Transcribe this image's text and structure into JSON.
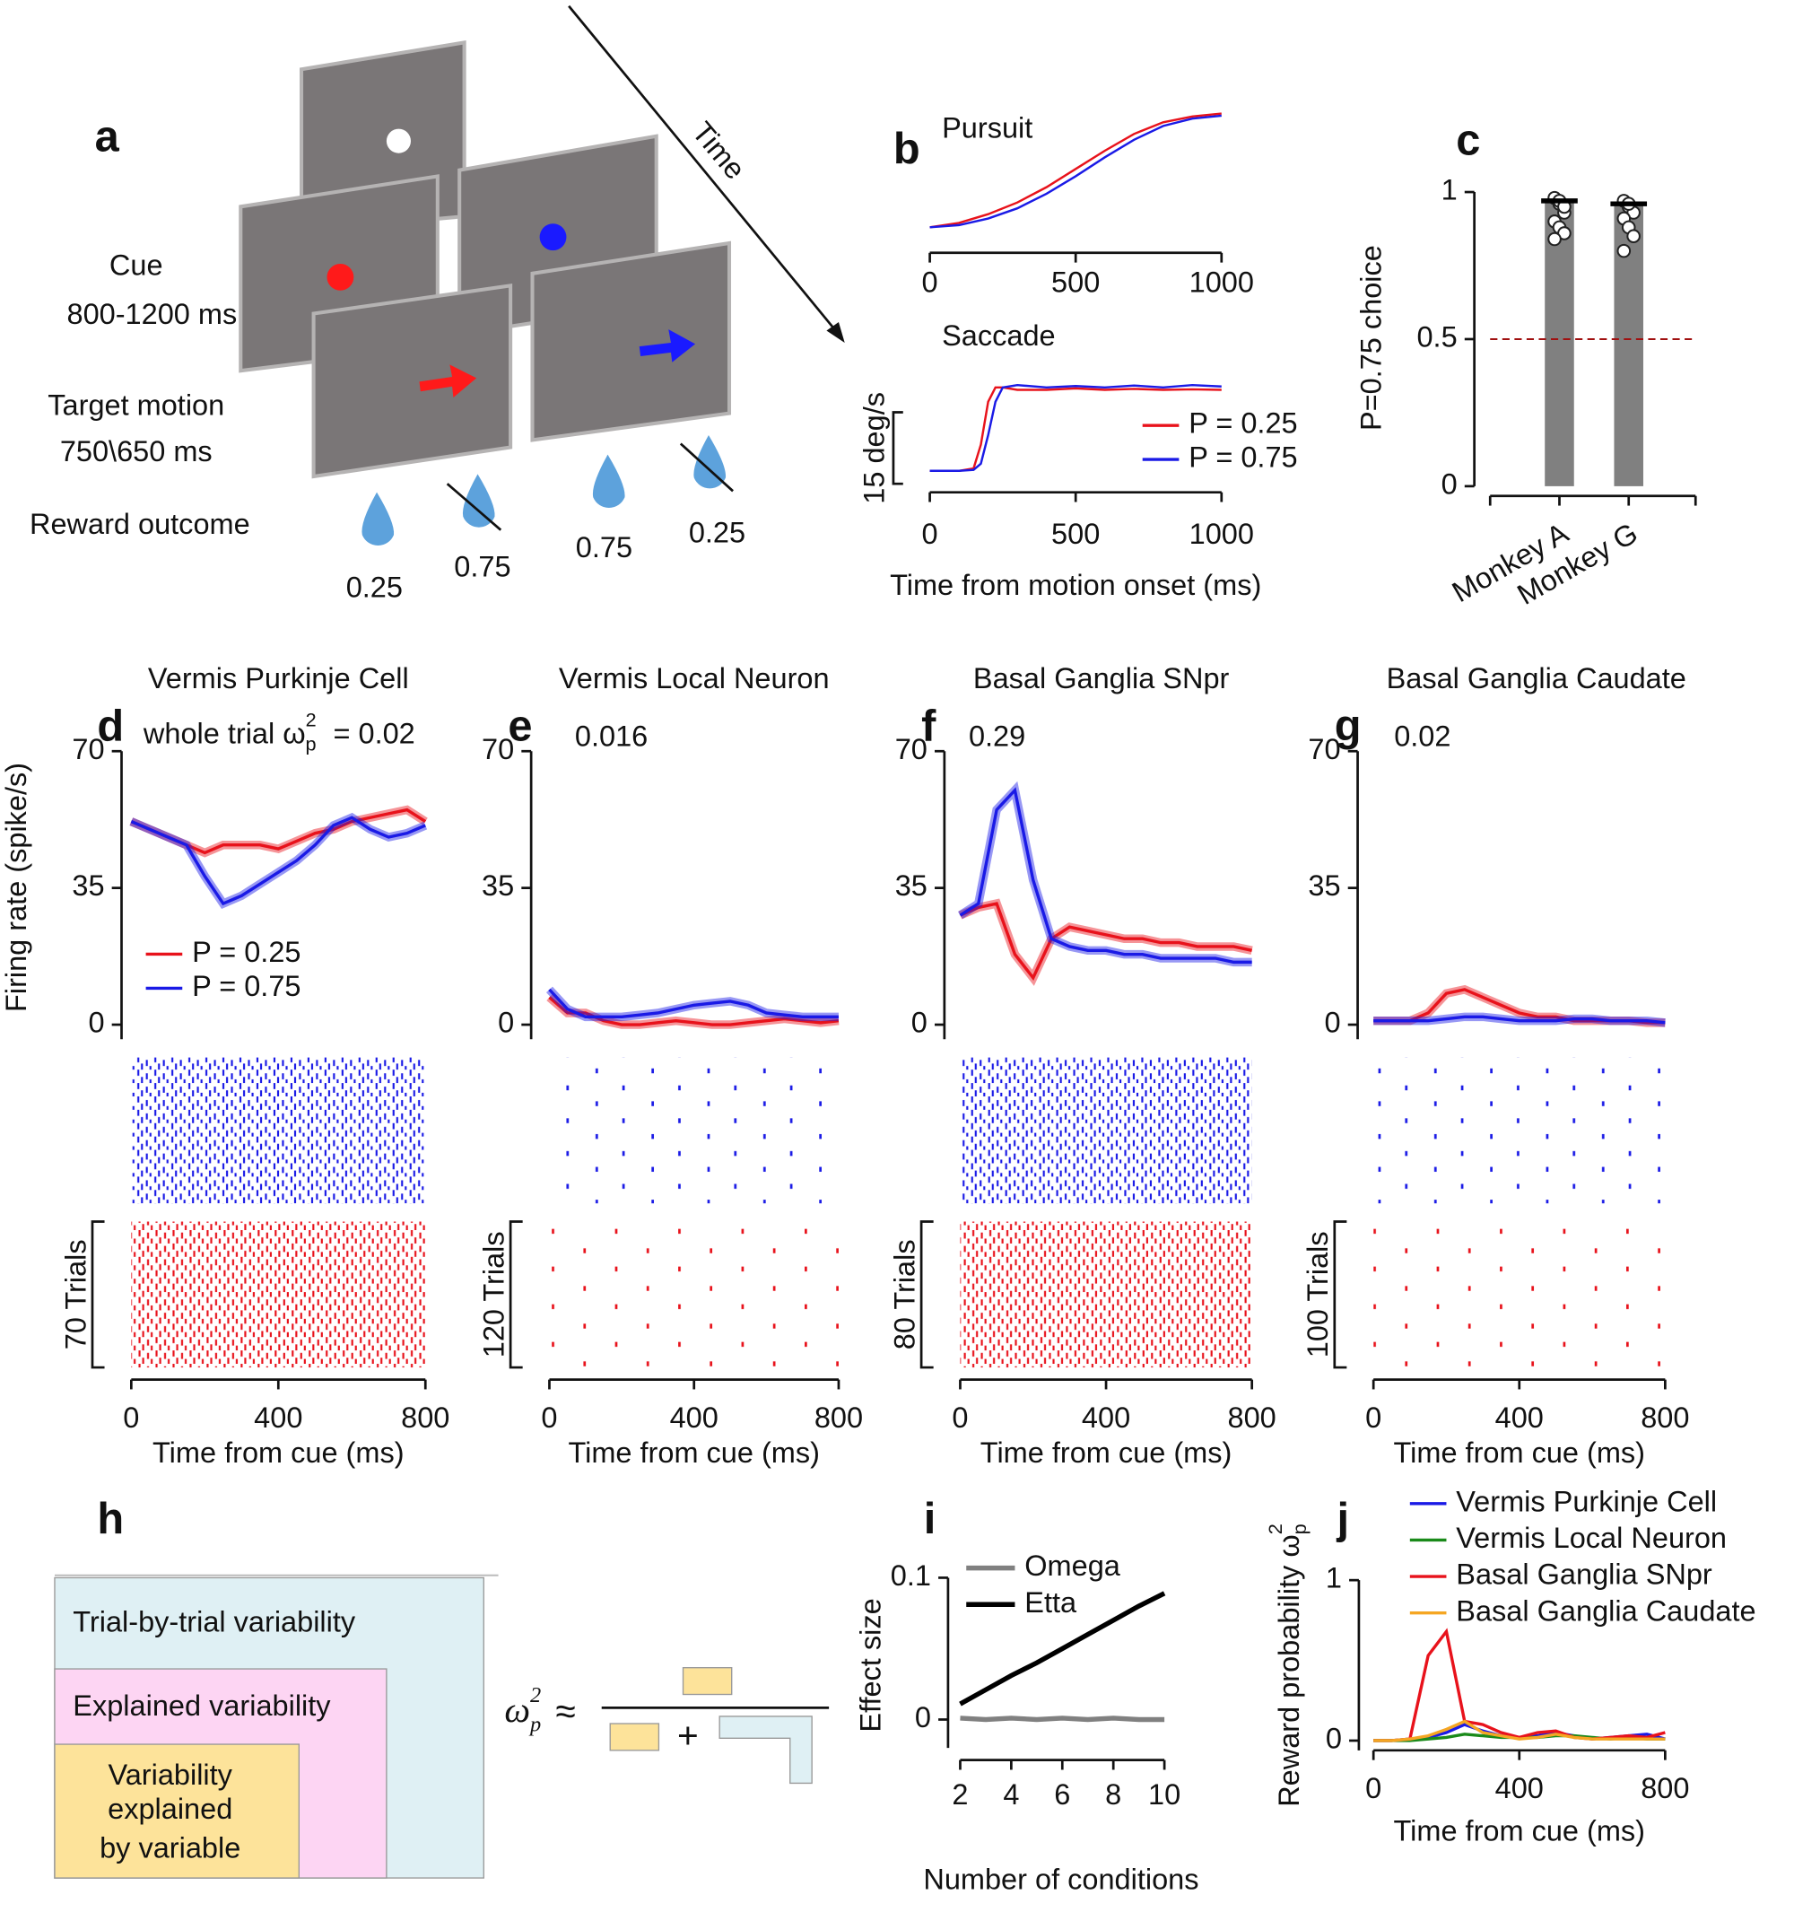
{
  "diagram_a": {
    "panel": "a",
    "time_label": "Time",
    "cue_label": "Cue",
    "cue_duration": "800-1200 ms",
    "motion_label": "Target motion",
    "motion_duration": "750\\650 ms",
    "reward_label": "Reward outcome",
    "reward_probabilities": [
      "0.25",
      "0.75",
      "0.75",
      "0.25"
    ]
  },
  "chart_data": [
    {
      "type": "line",
      "panel": "b",
      "title": "Pursuit",
      "x": [
        0,
        100,
        200,
        300,
        400,
        500,
        600,
        700,
        800,
        900,
        1000
      ],
      "xlim": [
        0,
        1000
      ],
      "xticks": [
        0,
        500,
        1000
      ],
      "ylim": [
        0,
        20
      ],
      "series": [
        {
          "color": "#e8121b",
          "values": [
            3,
            3.6,
            4.8,
            6.4,
            8.5,
            11,
            13.5,
            15.8,
            17.4,
            18.2,
            18.6
          ]
        },
        {
          "color": "#1a1ae6",
          "values": [
            3,
            3.3,
            4.2,
            5.6,
            7.6,
            10,
            12.6,
            15,
            16.9,
            17.9,
            18.3
          ]
        }
      ]
    },
    {
      "type": "line",
      "title": "Saccade",
      "xlabel": "Time from  motion onset (ms)",
      "scale_bar": {
        "value": 15,
        "label": "15 deg/s"
      },
      "x": [
        0,
        100,
        150,
        175,
        200,
        225,
        250,
        300,
        400,
        500,
        600,
        700,
        800,
        900,
        1000
      ],
      "xlim": [
        0,
        1000
      ],
      "xticks": [
        0,
        500,
        1000
      ],
      "ylim": [
        0,
        25
      ],
      "series": [
        {
          "name": "P = 0.25",
          "color": "#e8121b",
          "values": [
            4.5,
            4.5,
            5,
            10,
            19,
            22,
            22,
            21.5,
            21.5,
            21.8,
            21.5,
            21.7,
            21.5,
            21.6,
            21.5
          ]
        },
        {
          "name": "P = 0.75",
          "color": "#1a1ae6",
          "values": [
            4.5,
            4.5,
            4.7,
            6,
            12,
            19,
            22,
            22.5,
            22,
            22.3,
            22,
            22.4,
            22,
            22.5,
            22.2
          ]
        }
      ]
    },
    {
      "type": "bar",
      "panel": "c",
      "ylabel": "P=0.75 choice",
      "categories": [
        "Monkey A",
        "Monkey G"
      ],
      "values": [
        0.97,
        0.96
      ],
      "color": "#808080",
      "ylim": [
        0,
        1
      ],
      "yticks": [
        0,
        0.5,
        1
      ],
      "reference_line": 0.5,
      "points": [
        [
          0.98,
          0.96,
          0.93,
          0.9,
          0.88,
          0.86,
          0.84,
          0.97,
          0.95
        ],
        [
          0.97,
          0.95,
          0.93,
          0.91,
          0.88,
          0.85,
          0.8,
          0.96
        ]
      ]
    },
    {
      "type": "line",
      "panel": "d",
      "title": "Vermis Purkinje Cell",
      "annotation": {
        "text": "whole trial ω",
        "sub": "p",
        "sup": "2",
        "value": "= 0.02"
      },
      "ylabel": "Firing rate (spike/s)",
      "xlabel": "Time from cue (ms)",
      "raster_label": "70 Trials",
      "x": [
        0,
        50,
        100,
        150,
        200,
        250,
        300,
        350,
        400,
        450,
        500,
        550,
        600,
        650,
        700,
        750,
        800
      ],
      "xlim": [
        0,
        800
      ],
      "xticks": [
        0,
        400,
        800
      ],
      "ylim": [
        0,
        70
      ],
      "yticks": [
        0,
        35,
        70
      ],
      "series": [
        {
          "name": "P = 0.25",
          "color": "#e8121b",
          "values": [
            52,
            50,
            48,
            46,
            44,
            46,
            46,
            46,
            45,
            47,
            49,
            50,
            52,
            53,
            54,
            55,
            52
          ]
        },
        {
          "name": "P = 0.75",
          "color": "#1a1ae6",
          "values": [
            52,
            50,
            48,
            46,
            38,
            31,
            33,
            36,
            39,
            42,
            46,
            51,
            53,
            50,
            48,
            49,
            51
          ]
        }
      ]
    },
    {
      "type": "line",
      "panel": "e",
      "title": "Vermis Local Neuron",
      "annotation": {
        "value": "0.016"
      },
      "xlabel": "Time from cue (ms)",
      "raster_label": "120 Trials",
      "x": [
        0,
        50,
        100,
        150,
        200,
        250,
        300,
        350,
        400,
        450,
        500,
        550,
        600,
        650,
        700,
        750,
        800
      ],
      "xlim": [
        0,
        800
      ],
      "xticks": [
        0,
        400,
        800
      ],
      "ylim": [
        0,
        70
      ],
      "yticks": [
        0,
        35,
        70
      ],
      "series": [
        {
          "color": "#e8121b",
          "values": [
            7,
            3,
            3,
            1,
            0,
            0,
            0.5,
            1,
            0.5,
            0,
            0,
            0.5,
            1,
            1.5,
            1,
            0.5,
            1
          ]
        },
        {
          "color": "#1a1ae6",
          "values": [
            9,
            4,
            2,
            2,
            2,
            2.5,
            3,
            4,
            5,
            5.5,
            6,
            5,
            3,
            2.5,
            2,
            2,
            2
          ]
        }
      ]
    },
    {
      "type": "line",
      "panel": "f",
      "title": "Basal Ganglia SNpr",
      "annotation": {
        "value": "0.29"
      },
      "xlabel": "Time from cue (ms)",
      "raster_label": "80 Trials",
      "x": [
        0,
        50,
        100,
        150,
        200,
        250,
        300,
        350,
        400,
        450,
        500,
        550,
        600,
        650,
        700,
        750,
        800
      ],
      "xlim": [
        0,
        800
      ],
      "xticks": [
        0,
        400,
        800
      ],
      "ylim": [
        0,
        70
      ],
      "yticks": [
        0,
        35,
        70
      ],
      "series": [
        {
          "color": "#e8121b",
          "values": [
            28,
            30,
            31,
            18,
            12,
            22,
            25,
            24,
            23,
            22,
            22,
            21,
            21,
            20,
            20,
            20,
            19
          ]
        },
        {
          "color": "#1a1ae6",
          "values": [
            28,
            31,
            55,
            60,
            37,
            22,
            20,
            19,
            19,
            18,
            18,
            17,
            17,
            17,
            17,
            16,
            16
          ]
        }
      ]
    },
    {
      "type": "line",
      "panel": "g",
      "title": "Basal Ganglia Caudate",
      "annotation": {
        "value": "0.02"
      },
      "xlabel": "Time from cue (ms)",
      "raster_label": "100 Trials",
      "x": [
        0,
        50,
        100,
        150,
        200,
        250,
        300,
        350,
        400,
        450,
        500,
        550,
        600,
        650,
        700,
        750,
        800
      ],
      "xlim": [
        0,
        800
      ],
      "xticks": [
        0,
        400,
        800
      ],
      "ylim": [
        0,
        70
      ],
      "yticks": [
        0,
        35,
        70
      ],
      "series": [
        {
          "color": "#e8121b",
          "values": [
            1,
            1,
            1,
            3,
            8,
            9,
            7,
            5,
            3,
            2,
            2,
            1,
            1,
            1,
            1,
            0.5,
            0.5
          ]
        },
        {
          "color": "#1a1ae6",
          "values": [
            1,
            1,
            1,
            1,
            1.5,
            2,
            2,
            1.5,
            1,
            1,
            1,
            1.5,
            1.5,
            1,
            1,
            1,
            0.5
          ]
        }
      ]
    },
    {
      "type": "line",
      "panel": "i",
      "xlabel": "Number of conditions",
      "ylabel": "Effect size",
      "x": [
        2,
        3,
        4,
        5,
        6,
        7,
        8,
        9,
        10
      ],
      "xlim": [
        2,
        10
      ],
      "xticks": [
        2,
        4,
        6,
        8,
        10
      ],
      "ylim": [
        -0.02,
        0.1
      ],
      "yticks": [
        0,
        0.1
      ],
      "series": [
        {
          "name": "Omega",
          "color": "#808080",
          "values": [
            0.001,
            0,
            0.001,
            0,
            0.001,
            0,
            0.001,
            0,
            0
          ]
        },
        {
          "name": "Etta",
          "color": "#000000",
          "values": [
            0.011,
            0.021,
            0.031,
            0.04,
            0.05,
            0.06,
            0.07,
            0.08,
            0.089
          ]
        }
      ]
    },
    {
      "type": "line",
      "panel": "j",
      "ylabel": {
        "text": "Reward probability ω",
        "sub": "p",
        "sup": "2"
      },
      "xlabel": "Time from cue (ms)",
      "x": [
        0,
        50,
        100,
        150,
        200,
        250,
        300,
        350,
        400,
        450,
        500,
        550,
        600,
        650,
        700,
        750,
        800
      ],
      "xlim": [
        0,
        800
      ],
      "xticks": [
        0,
        400,
        800
      ],
      "ylim": [
        0,
        1
      ],
      "yticks": [
        0,
        1
      ],
      "series": [
        {
          "name": "Vermis Purkinje Cell",
          "color": "#1a1ae6",
          "values": [
            0,
            0,
            0.01,
            0.02,
            0.05,
            0.1,
            0.06,
            0.03,
            0.02,
            0.03,
            0.05,
            0.03,
            0.01,
            0.02,
            0.03,
            0.04,
            0.01
          ]
        },
        {
          "name": "Vermis Local Neuron",
          "color": "#1a8a1a",
          "values": [
            0,
            0,
            0,
            0.01,
            0.02,
            0.04,
            0.03,
            0.02,
            0.02,
            0.02,
            0.03,
            0.03,
            0.02,
            0.01,
            0.02,
            0.01,
            0.01
          ]
        },
        {
          "name": "Basal Ganglia SNpr",
          "color": "#e8121b",
          "values": [
            0,
            0,
            0.01,
            0.53,
            0.68,
            0.12,
            0.1,
            0.05,
            0.02,
            0.05,
            0.06,
            0.02,
            0.01,
            0.02,
            0.03,
            0.02,
            0.05
          ]
        },
        {
          "name": "Basal Ganglia Caudate",
          "color": "#f5a623",
          "values": [
            0,
            0,
            0.01,
            0.03,
            0.07,
            0.12,
            0.05,
            0.03,
            0.01,
            0.02,
            0.04,
            0.02,
            0.01,
            0.01,
            0.01,
            0.01,
            0.01
          ]
        }
      ]
    }
  ],
  "diagram_h": {
    "panel": "h",
    "outer": "Trial-by-trial variability",
    "middle": "Explained variability",
    "inner": [
      "Variability",
      "explained",
      "by variable"
    ],
    "formula": {
      "symbol": "ω",
      "sub": "p",
      "sup": "2",
      "relation": "≈"
    }
  }
}
